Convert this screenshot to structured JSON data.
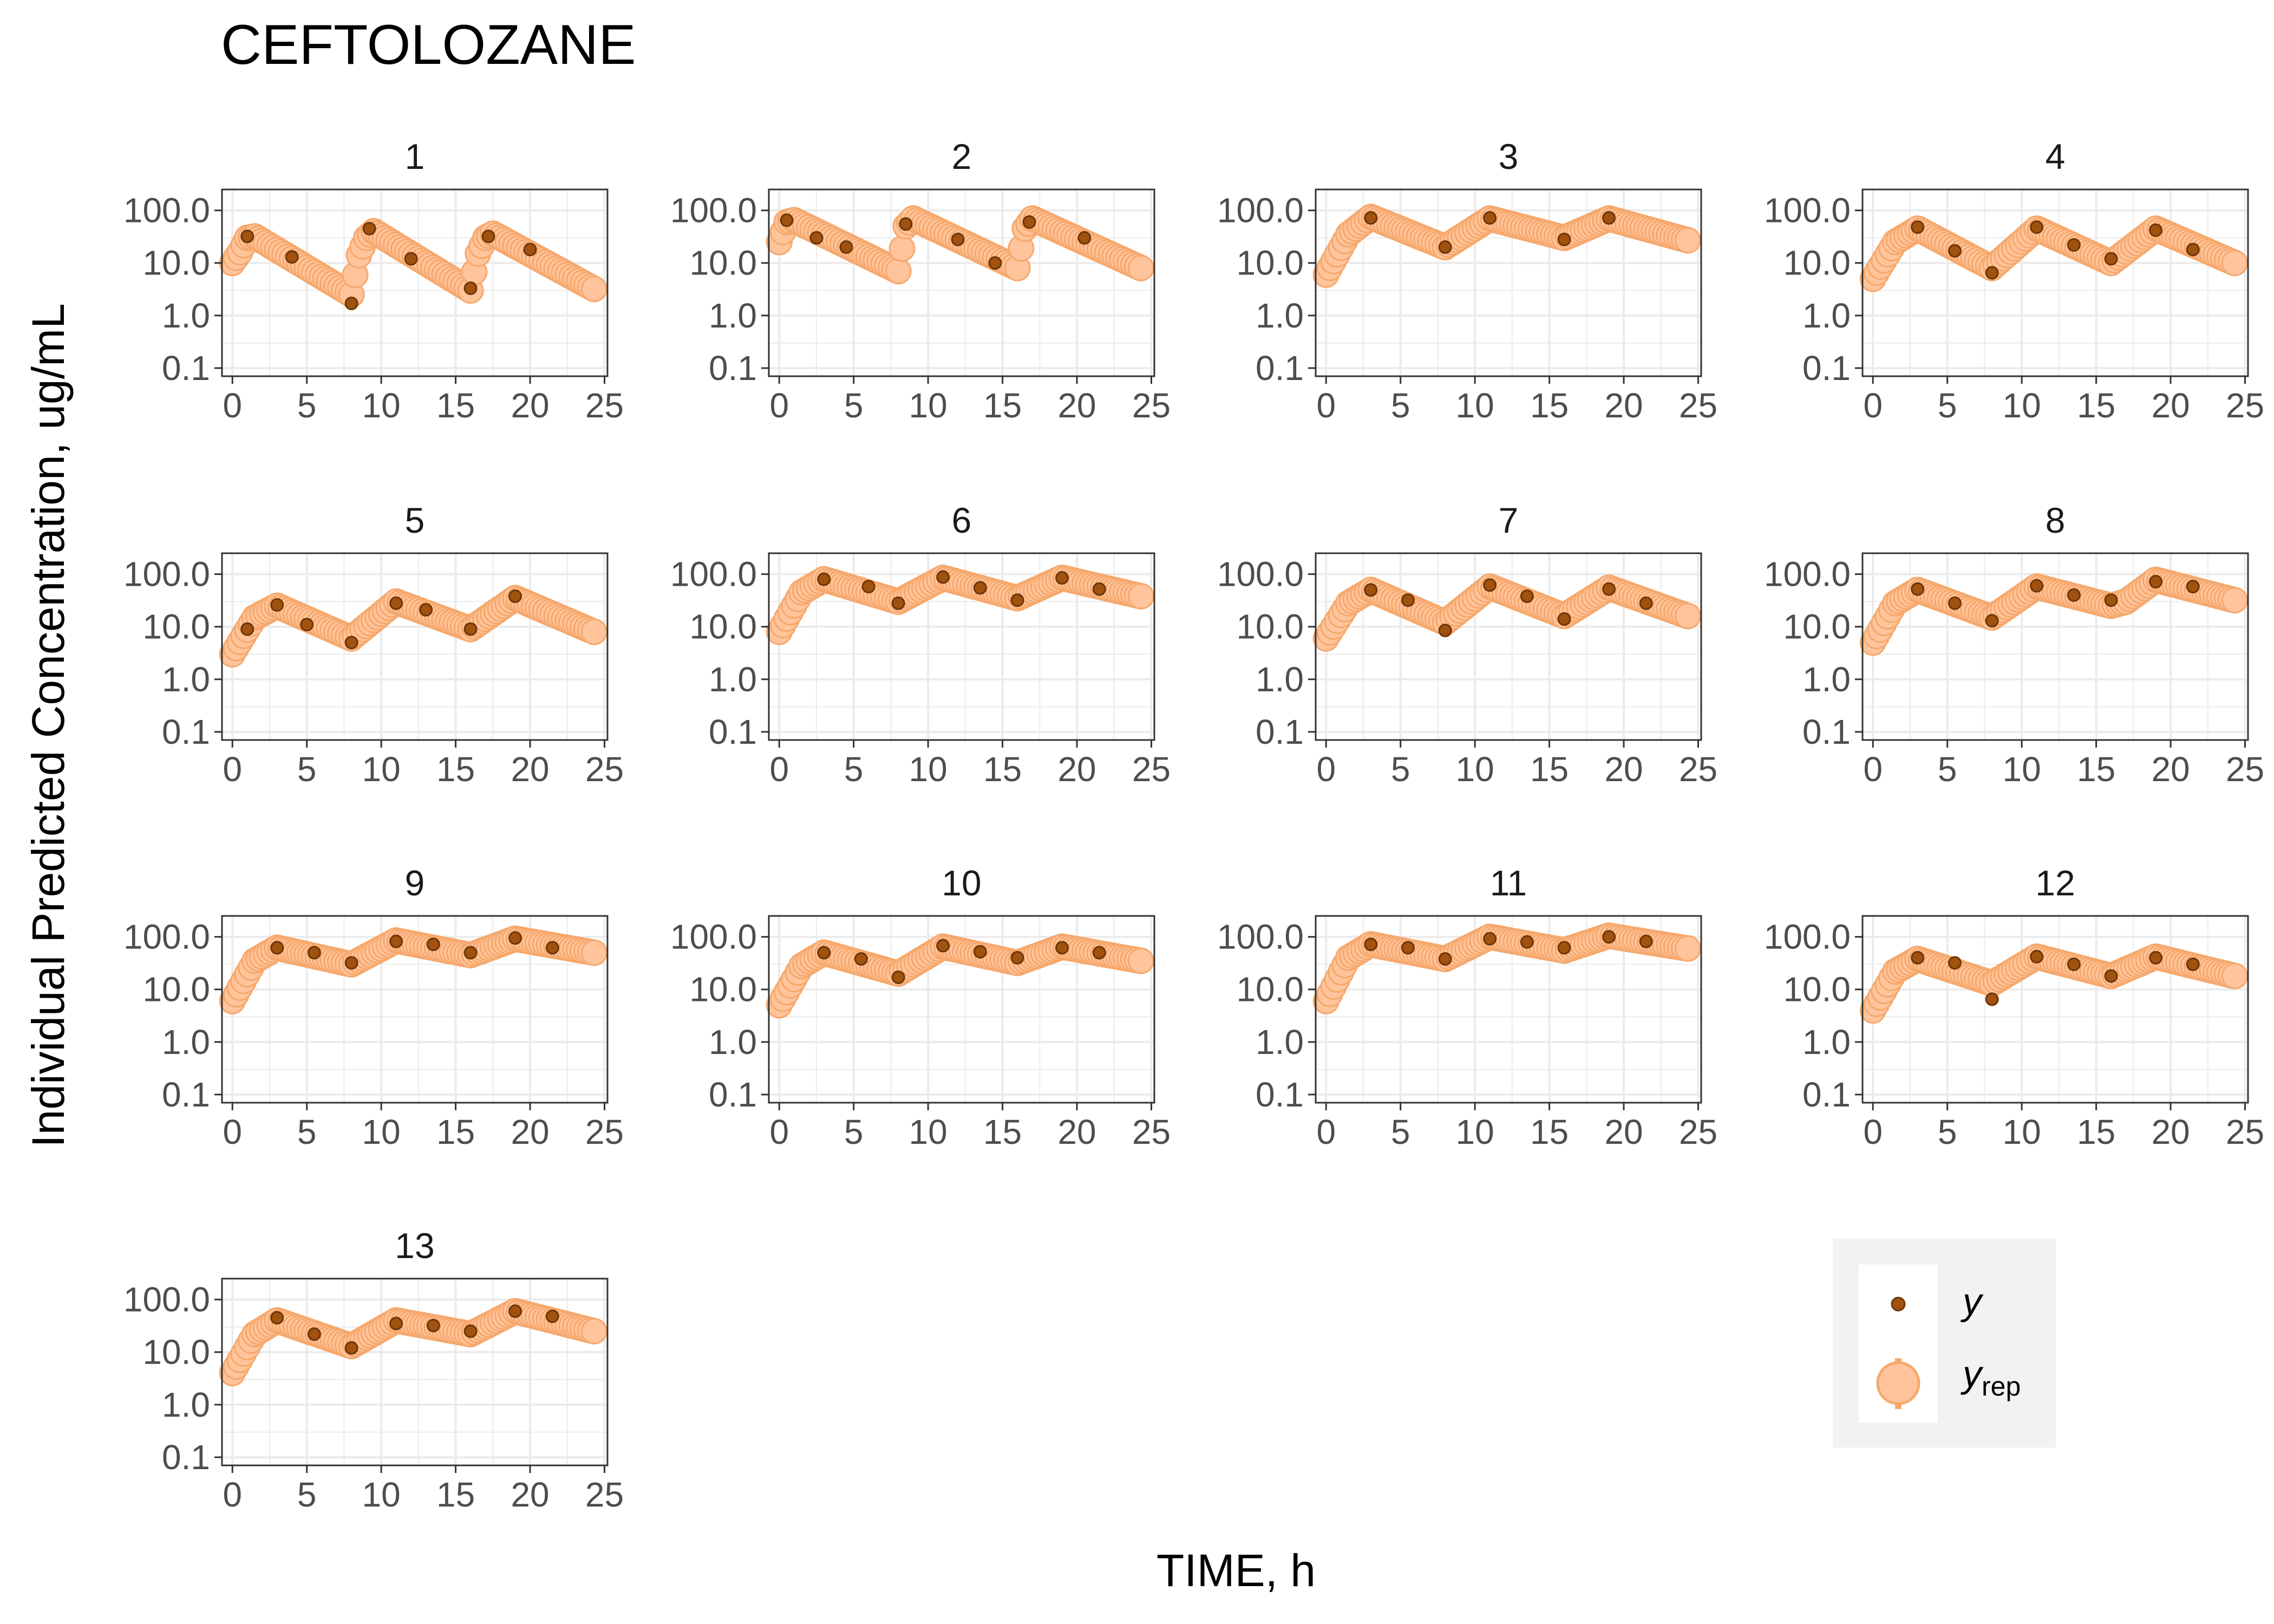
{
  "chart_data": {
    "type": "scatter",
    "title": "CEFTOLOZANE",
    "xlabel": "TIME, h",
    "ylabel": "Individual Predicted Concentration, ug/mL",
    "x_ticks": [
      "0",
      "5",
      "10",
      "15",
      "20",
      "25"
    ],
    "x_tick_values": [
      0,
      5,
      10,
      15,
      20,
      25
    ],
    "xlim": [
      -0.7,
      25.2
    ],
    "y_scale": "log10",
    "y_ticks": [
      "100.0",
      "10.0",
      "1.0",
      "0.1"
    ],
    "y_tick_values": [
      100,
      10,
      1,
      0.1
    ],
    "ylim": [
      0.07,
      250
    ],
    "grid": true,
    "facet_layout": "4 columns x 4 rows",
    "legend": {
      "position": "bottom-right",
      "entries": [
        {
          "key": "y",
          "label": "y",
          "sub": ""
        },
        {
          "key": "yrep",
          "label": "y",
          "sub": "rep"
        }
      ]
    },
    "colors": {
      "y": "#A0520E",
      "yrep_fill": "#FFC49B",
      "yrep_stroke": "#F6A86C",
      "legend_bg": "#F2F2F2",
      "grid": "#EBEBEB"
    },
    "panels": [
      {
        "label": "1",
        "yrep_knots": [
          [
            0.0,
            10
          ],
          [
            0.5,
            16
          ],
          [
            1.0,
            30
          ],
          [
            1.5,
            32
          ],
          [
            8.0,
            2.5
          ],
          [
            8.5,
            14
          ],
          [
            9.0,
            30
          ],
          [
            9.5,
            40
          ],
          [
            16.0,
            3.0
          ],
          [
            16.5,
            15
          ],
          [
            17.0,
            30
          ],
          [
            17.5,
            36
          ],
          [
            24.3,
            3.2
          ]
        ],
        "y": [
          [
            1.0,
            32
          ],
          [
            4.0,
            13
          ],
          [
            8.0,
            1.7
          ],
          [
            9.2,
            45
          ],
          [
            12.0,
            12
          ],
          [
            16.0,
            3.3
          ],
          [
            17.2,
            32
          ],
          [
            20.0,
            18
          ]
        ]
      },
      {
        "label": "2",
        "yrep_knots": [
          [
            0.0,
            25
          ],
          [
            0.5,
            60
          ],
          [
            1.0,
            65
          ],
          [
            8.0,
            7
          ],
          [
            8.5,
            50
          ],
          [
            9.0,
            70
          ],
          [
            16.0,
            8
          ],
          [
            16.5,
            45
          ],
          [
            17.0,
            70
          ],
          [
            24.3,
            8
          ]
        ],
        "y": [
          [
            0.5,
            65
          ],
          [
            2.5,
            30
          ],
          [
            4.5,
            20
          ],
          [
            8.5,
            55
          ],
          [
            12.0,
            28
          ],
          [
            14.5,
            10
          ],
          [
            16.8,
            60
          ],
          [
            20.5,
            30
          ]
        ]
      },
      {
        "label": "3",
        "yrep_knots": [
          [
            0.0,
            6
          ],
          [
            1.5,
            35
          ],
          [
            3.0,
            75
          ],
          [
            8.0,
            20
          ],
          [
            11.0,
            70
          ],
          [
            16.0,
            30
          ],
          [
            19.0,
            70
          ],
          [
            24.3,
            27
          ]
        ],
        "y": [
          [
            3.0,
            72
          ],
          [
            8.0,
            20
          ],
          [
            11.0,
            72
          ],
          [
            16.0,
            28
          ],
          [
            19.0,
            72
          ]
        ]
      },
      {
        "label": "4",
        "yrep_knots": [
          [
            0.0,
            5
          ],
          [
            1.5,
            25
          ],
          [
            3.0,
            45
          ],
          [
            8.0,
            8
          ],
          [
            11.0,
            45
          ],
          [
            16.0,
            10
          ],
          [
            19.0,
            45
          ],
          [
            24.3,
            10
          ]
        ],
        "y": [
          [
            3.0,
            48
          ],
          [
            5.5,
            17
          ],
          [
            8.0,
            6.5
          ],
          [
            11.0,
            48
          ],
          [
            13.5,
            22
          ],
          [
            16.0,
            12
          ],
          [
            19.0,
            42
          ],
          [
            21.5,
            18
          ]
        ]
      },
      {
        "label": "5",
        "yrep_knots": [
          [
            0.0,
            3
          ],
          [
            1.5,
            15
          ],
          [
            3.0,
            25
          ],
          [
            8.0,
            6
          ],
          [
            11.0,
            30
          ],
          [
            16.0,
            9
          ],
          [
            19.0,
            35
          ],
          [
            24.3,
            8
          ]
        ],
        "y": [
          [
            1.0,
            9
          ],
          [
            3.0,
            26
          ],
          [
            5.0,
            11
          ],
          [
            8.0,
            5
          ],
          [
            11.0,
            28
          ],
          [
            13.0,
            21
          ],
          [
            16.0,
            9
          ],
          [
            19.0,
            38
          ]
        ]
      },
      {
        "label": "6",
        "yrep_knots": [
          [
            0.0,
            8
          ],
          [
            1.5,
            45
          ],
          [
            3.0,
            80
          ],
          [
            8.0,
            30
          ],
          [
            11.0,
            85
          ],
          [
            16.0,
            35
          ],
          [
            19.0,
            85
          ],
          [
            24.3,
            38
          ]
        ],
        "y": [
          [
            3.0,
            80
          ],
          [
            6.0,
            58
          ],
          [
            8.0,
            28
          ],
          [
            11.0,
            88
          ],
          [
            13.5,
            55
          ],
          [
            16.0,
            32
          ],
          [
            19.0,
            85
          ],
          [
            21.5,
            52
          ]
        ]
      },
      {
        "label": "7",
        "yrep_knots": [
          [
            0.0,
            6
          ],
          [
            1.5,
            28
          ],
          [
            3.0,
            50
          ],
          [
            8.0,
            12
          ],
          [
            11.0,
            58
          ],
          [
            16.0,
            16
          ],
          [
            19.0,
            55
          ],
          [
            24.3,
            16
          ]
        ],
        "y": [
          [
            3.0,
            50
          ],
          [
            5.5,
            32
          ],
          [
            8.0,
            8.5
          ],
          [
            11.0,
            62
          ],
          [
            13.5,
            38
          ],
          [
            16.0,
            14
          ],
          [
            19.0,
            52
          ],
          [
            21.5,
            28
          ]
        ]
      },
      {
        "label": "8",
        "yrep_knots": [
          [
            0.0,
            5
          ],
          [
            1.5,
            28
          ],
          [
            3.0,
            50
          ],
          [
            8.0,
            15
          ],
          [
            11.0,
            58
          ],
          [
            16.0,
            25
          ],
          [
            17.0,
            30
          ],
          [
            19.0,
            78
          ],
          [
            24.3,
            32
          ]
        ],
        "y": [
          [
            3.0,
            52
          ],
          [
            5.5,
            28
          ],
          [
            8.0,
            13
          ],
          [
            11.0,
            60
          ],
          [
            13.5,
            40
          ],
          [
            16.0,
            32
          ],
          [
            19.0,
            72
          ],
          [
            21.5,
            58
          ]
        ]
      },
      {
        "label": "9",
        "yrep_knots": [
          [
            0.0,
            6
          ],
          [
            1.5,
            35
          ],
          [
            3.0,
            62
          ],
          [
            8.0,
            30
          ],
          [
            11.0,
            85
          ],
          [
            16.0,
            45
          ],
          [
            19.0,
            92
          ],
          [
            24.3,
            50
          ]
        ],
        "y": [
          [
            3.0,
            62
          ],
          [
            5.5,
            50
          ],
          [
            8.0,
            32
          ],
          [
            11.0,
            82
          ],
          [
            13.5,
            72
          ],
          [
            16.0,
            50
          ],
          [
            19.0,
            95
          ],
          [
            21.5,
            62
          ]
        ]
      },
      {
        "label": "10",
        "yrep_knots": [
          [
            0.0,
            5
          ],
          [
            1.5,
            28
          ],
          [
            3.0,
            50
          ],
          [
            8.0,
            20
          ],
          [
            11.0,
            65
          ],
          [
            16.0,
            32
          ],
          [
            19.0,
            65
          ],
          [
            24.3,
            35
          ]
        ],
        "y": [
          [
            3.0,
            50
          ],
          [
            5.5,
            38
          ],
          [
            8.0,
            17
          ],
          [
            11.0,
            68
          ],
          [
            13.5,
            52
          ],
          [
            16.0,
            40
          ],
          [
            19.0,
            62
          ],
          [
            21.5,
            50
          ]
        ]
      },
      {
        "label": "11",
        "yrep_knots": [
          [
            0.0,
            6
          ],
          [
            1.5,
            40
          ],
          [
            3.0,
            72
          ],
          [
            8.0,
            38
          ],
          [
            11.0,
            100
          ],
          [
            16.0,
            55
          ],
          [
            19.0,
            105
          ],
          [
            24.3,
            60
          ]
        ],
        "y": [
          [
            3.0,
            72
          ],
          [
            5.5,
            62
          ],
          [
            8.0,
            38
          ],
          [
            11.0,
            92
          ],
          [
            13.5,
            80
          ],
          [
            16.0,
            62
          ],
          [
            19.0,
            100
          ],
          [
            21.5,
            82
          ]
        ]
      },
      {
        "label": "12",
        "yrep_knots": [
          [
            0.0,
            4
          ],
          [
            1.5,
            22
          ],
          [
            3.0,
            38
          ],
          [
            8.0,
            13
          ],
          [
            11.0,
            42
          ],
          [
            16.0,
            18
          ],
          [
            19.0,
            42
          ],
          [
            24.3,
            18
          ]
        ],
        "y": [
          [
            3.0,
            40
          ],
          [
            5.5,
            32
          ],
          [
            8.0,
            6.5
          ],
          [
            11.0,
            42
          ],
          [
            13.5,
            30
          ],
          [
            16.0,
            18
          ],
          [
            19.0,
            40
          ],
          [
            21.5,
            30
          ]
        ]
      },
      {
        "label": "13",
        "yrep_knots": [
          [
            0.0,
            4
          ],
          [
            1.5,
            22
          ],
          [
            3.0,
            40
          ],
          [
            8.0,
            13
          ],
          [
            11.0,
            40
          ],
          [
            16.0,
            22
          ],
          [
            19.0,
            60
          ],
          [
            24.3,
            25
          ]
        ],
        "y": [
          [
            3.0,
            45
          ],
          [
            5.5,
            22
          ],
          [
            8.0,
            12
          ],
          [
            11.0,
            35
          ],
          [
            13.5,
            32
          ],
          [
            16.0,
            25
          ],
          [
            19.0,
            60
          ],
          [
            21.5,
            48
          ]
        ]
      }
    ]
  }
}
